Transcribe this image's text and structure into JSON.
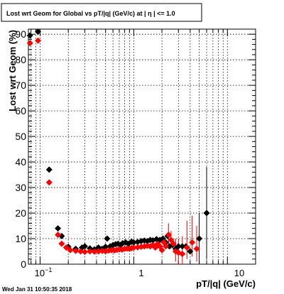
{
  "chart_data": {
    "type": "scatter",
    "title": "Lost wrt Geom for Global vs pT/|q| (GeV/c) at |  η | <= 1.0",
    "xlabel": "pT/|q| (GeV/c)",
    "ylabel": "Lost wrt Geom (%)",
    "timestamp": "Wed Jan 31 10:50:35 2018",
    "xscale": "log",
    "xlim": [
      0.075,
      20
    ],
    "ylim": [
      0,
      92
    ],
    "grid": true,
    "x_tick_labels": [
      {
        "value": 0.1,
        "label": "10^-1"
      },
      {
        "value": 1,
        "label": "1"
      },
      {
        "value": 10,
        "label": "10"
      }
    ],
    "y_ticks": [
      0,
      10,
      20,
      30,
      40,
      50,
      60,
      70,
      80,
      90
    ],
    "series": [
      {
        "color": "#000000",
        "points": [
          {
            "x": 0.078,
            "y": 89.5
          },
          {
            "x": 0.095,
            "y": 91.0
          },
          {
            "x": 0.125,
            "y": 37.0
          },
          {
            "x": 0.155,
            "y": 14.0
          },
          {
            "x": 0.17,
            "y": 11.0
          },
          {
            "x": 0.2,
            "y": 6.8
          },
          {
            "x": 0.24,
            "y": 6.0
          },
          {
            "x": 0.28,
            "y": 6.5
          },
          {
            "x": 0.3,
            "y": 7.0
          },
          {
            "x": 0.34,
            "y": 6.2
          },
          {
            "x": 0.38,
            "y": 5.8
          },
          {
            "x": 0.42,
            "y": 6.5
          },
          {
            "x": 0.46,
            "y": 6.0
          },
          {
            "x": 0.5,
            "y": 6.8
          },
          {
            "x": 0.52,
            "y": 10.0
          },
          {
            "x": 0.56,
            "y": 7.0
          },
          {
            "x": 0.6,
            "y": 7.5
          },
          {
            "x": 0.64,
            "y": 7.8
          },
          {
            "x": 0.68,
            "y": 8.0
          },
          {
            "x": 0.72,
            "y": 7.5
          },
          {
            "x": 0.76,
            "y": 8.2
          },
          {
            "x": 0.82,
            "y": 8.5
          },
          {
            "x": 0.88,
            "y": 8.0
          },
          {
            "x": 0.95,
            "y": 8.8
          },
          {
            "x": 1.0,
            "y": 8.5
          },
          {
            "x": 1.1,
            "y": 8.7
          },
          {
            "x": 1.2,
            "y": 9.0
          },
          {
            "x": 1.3,
            "y": 9.2
          },
          {
            "x": 1.4,
            "y": 9.0
          },
          {
            "x": 1.5,
            "y": 9.5
          },
          {
            "x": 1.6,
            "y": 9.3
          },
          {
            "x": 1.75,
            "y": 9.8
          },
          {
            "x": 1.9,
            "y": 9.5
          },
          {
            "x": 2.05,
            "y": 10.0
          },
          {
            "x": 2.2,
            "y": 8.5
          },
          {
            "x": 2.3,
            "y": 11.0
          },
          {
            "x": 2.4,
            "y": 7.0
          },
          {
            "x": 2.6,
            "y": 7.5
          },
          {
            "x": 2.8,
            "y": 6.0
          },
          {
            "x": 3.0,
            "y": 7.0
          },
          {
            "x": 3.3,
            "y": 7.0
          },
          {
            "x": 3.6,
            "y": 7.0
          },
          {
            "x": 4.0,
            "y": 5.0
          },
          {
            "x": 5.0,
            "y": 10.0
          },
          {
            "x": 6.0,
            "y": 20.0
          }
        ],
        "errors": [
          {
            "x": 5.0,
            "lo": 0,
            "hi": 20
          },
          {
            "x": 6.0,
            "lo": 2,
            "hi": 38
          }
        ]
      },
      {
        "color": "#ff0000",
        "points": [
          {
            "x": 0.078,
            "y": 86.5
          },
          {
            "x": 0.095,
            "y": 87.5
          },
          {
            "x": 0.125,
            "y": 32.0
          },
          {
            "x": 0.155,
            "y": 11.5
          },
          {
            "x": 0.17,
            "y": 8.0
          },
          {
            "x": 0.19,
            "y": 6.5
          },
          {
            "x": 0.21,
            "y": 5.5
          },
          {
            "x": 0.24,
            "y": 5.2
          },
          {
            "x": 0.27,
            "y": 5.0
          },
          {
            "x": 0.3,
            "y": 4.8
          },
          {
            "x": 0.34,
            "y": 5.0
          },
          {
            "x": 0.38,
            "y": 4.9
          },
          {
            "x": 0.42,
            "y": 5.0
          },
          {
            "x": 0.46,
            "y": 5.2
          },
          {
            "x": 0.5,
            "y": 5.0
          },
          {
            "x": 0.54,
            "y": 5.3
          },
          {
            "x": 0.58,
            "y": 5.5
          },
          {
            "x": 0.62,
            "y": 5.4
          },
          {
            "x": 0.66,
            "y": 5.6
          },
          {
            "x": 0.7,
            "y": 5.8
          },
          {
            "x": 0.75,
            "y": 5.7
          },
          {
            "x": 0.8,
            "y": 6.0
          },
          {
            "x": 0.85,
            "y": 6.1
          },
          {
            "x": 0.9,
            "y": 6.0
          },
          {
            "x": 0.95,
            "y": 6.3
          },
          {
            "x": 1.0,
            "y": 6.5
          },
          {
            "x": 1.1,
            "y": 6.6
          },
          {
            "x": 1.2,
            "y": 6.8
          },
          {
            "x": 1.3,
            "y": 7.0
          },
          {
            "x": 1.4,
            "y": 7.2
          },
          {
            "x": 1.5,
            "y": 7.0
          },
          {
            "x": 1.6,
            "y": 7.5
          },
          {
            "x": 1.7,
            "y": 6.5
          },
          {
            "x": 1.8,
            "y": 8.0
          },
          {
            "x": 1.9,
            "y": 7.0
          },
          {
            "x": 2.0,
            "y": 5.5
          },
          {
            "x": 2.1,
            "y": 8.5
          },
          {
            "x": 2.2,
            "y": 7.0
          },
          {
            "x": 2.35,
            "y": 11.5
          },
          {
            "x": 2.5,
            "y": 9.5
          },
          {
            "x": 2.65,
            "y": 8.0
          },
          {
            "x": 2.8,
            "y": 5.0
          },
          {
            "x": 3.0,
            "y": 4.5
          },
          {
            "x": 3.3,
            "y": 4.0
          },
          {
            "x": 3.7,
            "y": 6.5
          },
          {
            "x": 4.2,
            "y": 8.5
          },
          {
            "x": 4.7,
            "y": 6.0
          }
        ],
        "errors": [
          {
            "x": 2.35,
            "lo": 7,
            "hi": 16
          },
          {
            "x": 2.5,
            "lo": 6,
            "hi": 13
          },
          {
            "x": 2.8,
            "lo": 1,
            "hi": 10
          },
          {
            "x": 3.0,
            "lo": 0,
            "hi": 10
          },
          {
            "x": 3.3,
            "lo": 0,
            "hi": 11
          },
          {
            "x": 3.7,
            "lo": 2,
            "hi": 17
          },
          {
            "x": 4.2,
            "lo": 3,
            "hi": 19
          },
          {
            "x": 4.7,
            "lo": 1,
            "hi": 15
          }
        ]
      }
    ]
  }
}
